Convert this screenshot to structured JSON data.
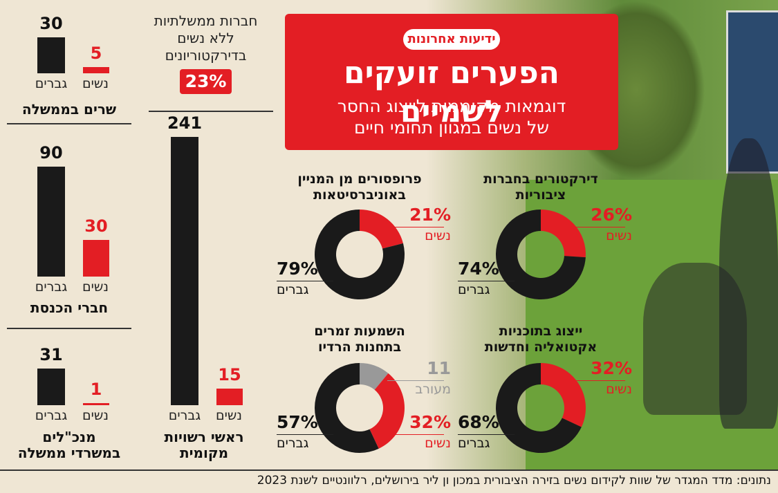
{
  "brand": {
    "logo_text": "ידיעות אחרונות",
    "accent": "#e31e24",
    "dark": "#1a1a1a",
    "gray": "#999999"
  },
  "header": {
    "headline": "הפערים זועקים לשמיים",
    "subhead_line1": "דוגמאות מקוממות לייצוג החסר",
    "subhead_line2": "של נשים במגוון תחומי חיים"
  },
  "no_women_boards": {
    "line1": "חברות ממשלתיות",
    "line2": "ללא נשים",
    "line3": "בדירקטוריונים",
    "value": "23%"
  },
  "chart_data": [
    {
      "type": "bar",
      "title": "שרים בממשלה",
      "categories": [
        "גברים",
        "נשים"
      ],
      "values": [
        30,
        5
      ],
      "labels": [
        "30",
        "5"
      ]
    },
    {
      "type": "bar",
      "title": "חברי הכנסת",
      "categories": [
        "גברים",
        "נשים"
      ],
      "values": [
        90,
        30
      ],
      "labels": [
        "90",
        "30"
      ]
    },
    {
      "type": "bar",
      "title": "מנכ\"לים במשרדי ממשלה",
      "title_line1": "מנכ\"לים",
      "title_line2": "במשרדי ממשלה",
      "categories": [
        "גברים",
        "נשים"
      ],
      "values": [
        31,
        1
      ],
      "labels": [
        "31",
        "1"
      ]
    },
    {
      "type": "bar",
      "title": "ראשי רשויות מקומית",
      "title_line1": "ראשי רשויות",
      "title_line2": "מקומית",
      "categories": [
        "גברים",
        "נשים"
      ],
      "values": [
        241,
        15
      ],
      "labels": [
        "241",
        "15"
      ]
    },
    {
      "type": "pie",
      "title": "דירקטורים בחברות ציבוריות",
      "title_line1": "דירקטורים בחברות",
      "title_line2": "ציבוריות",
      "slices": [
        {
          "label": "נשים",
          "value": 26,
          "text": "26%"
        },
        {
          "label": "גברים",
          "value": 74,
          "text": "74%"
        }
      ]
    },
    {
      "type": "pie",
      "title": "פרופסורים מן המניין באוניברסיטאות",
      "title_line1": "פרופסורים מן המניין",
      "title_line2": "באוניברסיטאות",
      "slices": [
        {
          "label": "נשים",
          "value": 21,
          "text": "21%"
        },
        {
          "label": "גברים",
          "value": 79,
          "text": "79%"
        }
      ]
    },
    {
      "type": "pie",
      "title": "ייצוג בתוכניות אקטואליה וחדשות",
      "title_line1": "ייצוג בתוכניות",
      "title_line2": "אקטואליה וחדשות",
      "slices": [
        {
          "label": "נשים",
          "value": 32,
          "text": "32%"
        },
        {
          "label": "גברים",
          "value": 68,
          "text": "68%"
        }
      ]
    },
    {
      "type": "pie",
      "title": "השמעות זמרים בתחנות הרדיו",
      "title_line1": "השמעות זמרים",
      "title_line2": "בתחנות הרדיו",
      "slices": [
        {
          "label": "מעורב",
          "value": 11,
          "text": "11"
        },
        {
          "label": "נשים",
          "value": 32,
          "text": "32%"
        },
        {
          "label": "גברים",
          "value": 57,
          "text": "57%"
        }
      ]
    }
  ],
  "footer": {
    "source": "נתונים: מדד המגדר של שוות לקידום נשים בזירה הציבורית במכון ון ליר בירושלים, רלוונטיים לשנת 2023"
  }
}
